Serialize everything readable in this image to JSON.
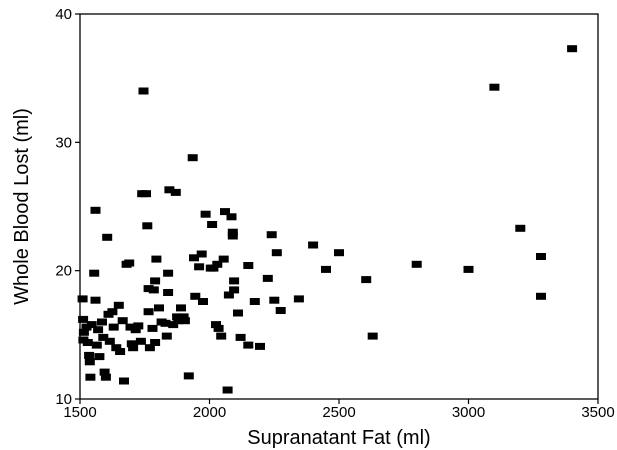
{
  "chart_data": {
    "type": "scatter",
    "title": "",
    "xlabel": "Supranatant Fat (ml)",
    "ylabel": "Whole Blood Lost (ml)",
    "xlim": [
      1500,
      3500
    ],
    "ylim": [
      10,
      40
    ],
    "x_ticks": [
      1500,
      2000,
      2500,
      3000,
      3500
    ],
    "y_ticks": [
      10,
      20,
      30,
      40
    ],
    "x_tick_labels": [
      "1500",
      "2000",
      "2500",
      "3000",
      "3500"
    ],
    "y_tick_labels": [
      "10",
      "20",
      "30",
      "40"
    ],
    "marker": "square",
    "marker_color": "#000000",
    "grid": false,
    "legend": "none",
    "points": [
      {
        "x": 1510,
        "y": 17.8
      },
      {
        "x": 1512,
        "y": 16.2
      },
      {
        "x": 1515,
        "y": 15.2
      },
      {
        "x": 1513,
        "y": 14.6
      },
      {
        "x": 1525,
        "y": 15.6
      },
      {
        "x": 1530,
        "y": 14.4
      },
      {
        "x": 1535,
        "y": 13.4
      },
      {
        "x": 1538,
        "y": 12.9
      },
      {
        "x": 1540,
        "y": 11.7
      },
      {
        "x": 1545,
        "y": 15.8
      },
      {
        "x": 1555,
        "y": 19.8
      },
      {
        "x": 1560,
        "y": 17.7
      },
      {
        "x": 1560,
        "y": 24.7
      },
      {
        "x": 1565,
        "y": 14.2
      },
      {
        "x": 1570,
        "y": 15.4
      },
      {
        "x": 1575,
        "y": 13.3
      },
      {
        "x": 1585,
        "y": 16.0
      },
      {
        "x": 1590,
        "y": 14.8
      },
      {
        "x": 1595,
        "y": 12.1
      },
      {
        "x": 1600,
        "y": 11.7
      },
      {
        "x": 1605,
        "y": 22.6
      },
      {
        "x": 1610,
        "y": 16.6
      },
      {
        "x": 1615,
        "y": 14.5
      },
      {
        "x": 1625,
        "y": 16.8
      },
      {
        "x": 1630,
        "y": 15.6
      },
      {
        "x": 1640,
        "y": 14.0
      },
      {
        "x": 1650,
        "y": 17.3
      },
      {
        "x": 1655,
        "y": 13.7
      },
      {
        "x": 1665,
        "y": 16.1
      },
      {
        "x": 1670,
        "y": 11.4
      },
      {
        "x": 1680,
        "y": 20.5
      },
      {
        "x": 1690,
        "y": 20.6
      },
      {
        "x": 1695,
        "y": 15.6
      },
      {
        "x": 1700,
        "y": 14.3
      },
      {
        "x": 1705,
        "y": 14.0
      },
      {
        "x": 1715,
        "y": 15.4
      },
      {
        "x": 1725,
        "y": 15.7
      },
      {
        "x": 1735,
        "y": 14.5
      },
      {
        "x": 1740,
        "y": 26.0
      },
      {
        "x": 1745,
        "y": 34.0
      },
      {
        "x": 1755,
        "y": 26.0
      },
      {
        "x": 1760,
        "y": 23.5
      },
      {
        "x": 1765,
        "y": 18.6
      },
      {
        "x": 1765,
        "y": 16.8
      },
      {
        "x": 1770,
        "y": 14.0
      },
      {
        "x": 1780,
        "y": 15.5
      },
      {
        "x": 1785,
        "y": 18.5
      },
      {
        "x": 1790,
        "y": 14.4
      },
      {
        "x": 1790,
        "y": 19.2
      },
      {
        "x": 1795,
        "y": 20.9
      },
      {
        "x": 1805,
        "y": 17.1
      },
      {
        "x": 1815,
        "y": 16.0
      },
      {
        "x": 1830,
        "y": 15.9
      },
      {
        "x": 1835,
        "y": 14.9
      },
      {
        "x": 1840,
        "y": 19.8
      },
      {
        "x": 1840,
        "y": 18.3
      },
      {
        "x": 1845,
        "y": 26.3
      },
      {
        "x": 1860,
        "y": 15.8
      },
      {
        "x": 1870,
        "y": 26.1
      },
      {
        "x": 1875,
        "y": 16.4
      },
      {
        "x": 1880,
        "y": 16.1
      },
      {
        "x": 1890,
        "y": 17.1
      },
      {
        "x": 1900,
        "y": 16.4
      },
      {
        "x": 1905,
        "y": 16.1
      },
      {
        "x": 1920,
        "y": 11.8
      },
      {
        "x": 1935,
        "y": 28.8
      },
      {
        "x": 1940,
        "y": 21.0
      },
      {
        "x": 1945,
        "y": 18.0
      },
      {
        "x": 1960,
        "y": 20.3
      },
      {
        "x": 1970,
        "y": 21.3
      },
      {
        "x": 1975,
        "y": 17.6
      },
      {
        "x": 1985,
        "y": 24.4
      },
      {
        "x": 2005,
        "y": 20.2
      },
      {
        "x": 2010,
        "y": 23.6
      },
      {
        "x": 2015,
        "y": 20.2
      },
      {
        "x": 2025,
        "y": 15.8
      },
      {
        "x": 2030,
        "y": 20.5
      },
      {
        "x": 2035,
        "y": 15.5
      },
      {
        "x": 2045,
        "y": 14.9
      },
      {
        "x": 2055,
        "y": 20.9
      },
      {
        "x": 2060,
        "y": 24.6
      },
      {
        "x": 2070,
        "y": 10.7
      },
      {
        "x": 2075,
        "y": 18.1
      },
      {
        "x": 2085,
        "y": 24.2
      },
      {
        "x": 2090,
        "y": 23.0
      },
      {
        "x": 2090,
        "y": 22.7
      },
      {
        "x": 2095,
        "y": 19.2
      },
      {
        "x": 2095,
        "y": 18.5
      },
      {
        "x": 2110,
        "y": 16.7
      },
      {
        "x": 2120,
        "y": 14.8
      },
      {
        "x": 2150,
        "y": 20.4
      },
      {
        "x": 2150,
        "y": 14.2
      },
      {
        "x": 2175,
        "y": 17.6
      },
      {
        "x": 2195,
        "y": 14.1
      },
      {
        "x": 2225,
        "y": 19.4
      },
      {
        "x": 2240,
        "y": 22.8
      },
      {
        "x": 2250,
        "y": 17.7
      },
      {
        "x": 2260,
        "y": 21.4
      },
      {
        "x": 2275,
        "y": 16.9
      },
      {
        "x": 2345,
        "y": 17.8
      },
      {
        "x": 2400,
        "y": 22.0
      },
      {
        "x": 2450,
        "y": 20.1
      },
      {
        "x": 2500,
        "y": 21.4
      },
      {
        "x": 2605,
        "y": 19.3
      },
      {
        "x": 2630,
        "y": 14.9
      },
      {
        "x": 2800,
        "y": 20.5
      },
      {
        "x": 3000,
        "y": 20.1
      },
      {
        "x": 3100,
        "y": 34.3
      },
      {
        "x": 3200,
        "y": 23.3
      },
      {
        "x": 3280,
        "y": 21.1
      },
      {
        "x": 3280,
        "y": 18.0
      },
      {
        "x": 3400,
        "y": 37.3
      }
    ]
  }
}
